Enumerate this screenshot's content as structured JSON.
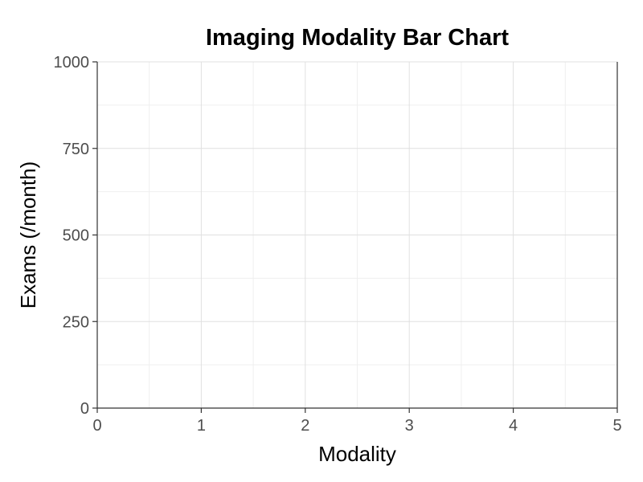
{
  "chart_data": {
    "type": "bar",
    "title": "Imaging Modality Bar Chart",
    "xlabel": "Modality",
    "ylabel": "Exams (/month)",
    "xlim": [
      0,
      5
    ],
    "ylim": [
      0,
      1000
    ],
    "x_ticks": [
      "0",
      "1",
      "2",
      "3",
      "4",
      "5"
    ],
    "y_ticks": [
      "0",
      "250",
      "500",
      "750",
      "1000"
    ],
    "x_tick_values": [
      0,
      1,
      2,
      3,
      4,
      5
    ],
    "y_tick_values": [
      0,
      250,
      500,
      750,
      1000
    ],
    "categories": [],
    "values": [],
    "grid": true
  }
}
